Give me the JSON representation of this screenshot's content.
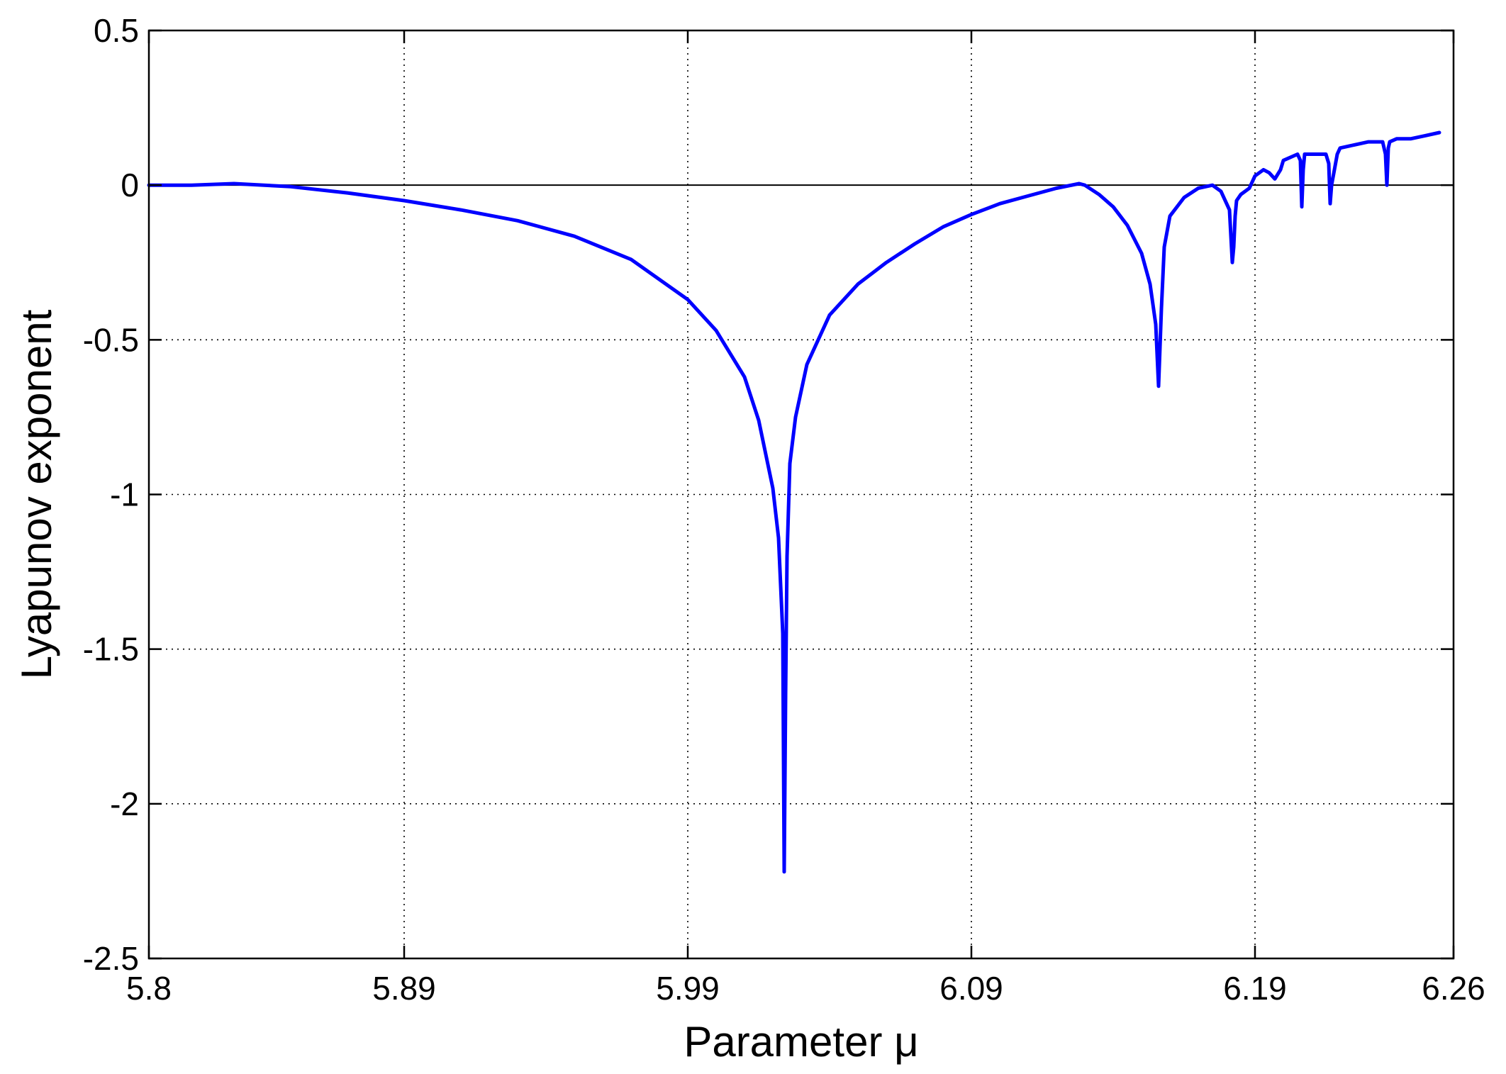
{
  "chart_data": {
    "type": "line",
    "title": "",
    "xlabel": "Parameter μ",
    "ylabel": "Lyapunov exponent",
    "xlim": [
      5.8,
      6.26
    ],
    "ylim": [
      -2.5,
      0.5
    ],
    "grid": true,
    "legend": "none",
    "x_ticks": [
      5.8,
      5.89,
      5.99,
      6.09,
      6.19,
      6.26
    ],
    "x_tick_labels": [
      "5.8",
      "5.89",
      "5.99",
      "6.09",
      "6.19",
      "6.26"
    ],
    "y_ticks": [
      0.5,
      0,
      -0.5,
      -1,
      -1.5,
      -2,
      -2.5
    ],
    "y_tick_labels": [
      "0.5",
      "0",
      "-0.5",
      "-1",
      "-1.5",
      "-2",
      "-2.5"
    ],
    "reference_line": {
      "y": 0,
      "color": "#000000"
    },
    "series": [
      {
        "color": "#0000ff",
        "x": [
          5.8,
          5.815,
          5.83,
          5.85,
          5.87,
          5.89,
          5.91,
          5.93,
          5.95,
          5.97,
          5.99,
          6.0,
          6.01,
          6.015,
          6.02,
          6.022,
          6.0235,
          6.024,
          6.0245,
          6.025,
          6.0255,
          6.026,
          6.028,
          6.032,
          6.04,
          6.05,
          6.06,
          6.07,
          6.08,
          6.09,
          6.1,
          6.11,
          6.12,
          6.128,
          6.13,
          6.135,
          6.14,
          6.145,
          6.15,
          6.153,
          6.155,
          6.156,
          6.157,
          6.158,
          6.16,
          6.165,
          6.17,
          6.175,
          6.178,
          6.181,
          6.182,
          6.1825,
          6.183,
          6.1835,
          6.185,
          6.188,
          6.19,
          6.193,
          6.195,
          6.197,
          6.199,
          6.2,
          6.205,
          6.206,
          6.2065,
          6.207,
          6.2075,
          6.21,
          6.215,
          6.216,
          6.2165,
          6.217,
          6.218,
          6.219,
          6.22,
          6.225,
          6.23,
          6.235,
          6.236,
          6.2365,
          6.237,
          6.2375,
          6.24,
          6.245,
          6.25,
          6.255
        ],
        "y": [
          0,
          0,
          0.005,
          -0.005,
          -0.025,
          -0.05,
          -0.08,
          -0.115,
          -0.165,
          -0.24,
          -0.37,
          -0.47,
          -0.62,
          -0.76,
          -0.98,
          -1.14,
          -1.45,
          -2.22,
          -1.65,
          -1.2,
          -1.05,
          -0.9,
          -0.75,
          -0.58,
          -0.42,
          -0.32,
          -0.25,
          -0.19,
          -0.135,
          -0.095,
          -0.06,
          -0.035,
          -0.01,
          0.005,
          0,
          -0.03,
          -0.07,
          -0.13,
          -0.22,
          -0.32,
          -0.45,
          -0.65,
          -0.4,
          -0.2,
          -0.1,
          -0.04,
          -0.01,
          0,
          -0.02,
          -0.08,
          -0.25,
          -0.2,
          -0.1,
          -0.05,
          -0.03,
          -0.01,
          0.03,
          0.05,
          0.04,
          0.02,
          0.05,
          0.08,
          0.1,
          0.08,
          -0.07,
          0.05,
          0.1,
          0.1,
          0.1,
          0.07,
          -0.06,
          0.0,
          0.05,
          0.1,
          0.12,
          0.13,
          0.14,
          0.14,
          0.1,
          0.0,
          0.12,
          0.14,
          0.15,
          0.15,
          0.16,
          0.17
        ]
      }
    ]
  }
}
